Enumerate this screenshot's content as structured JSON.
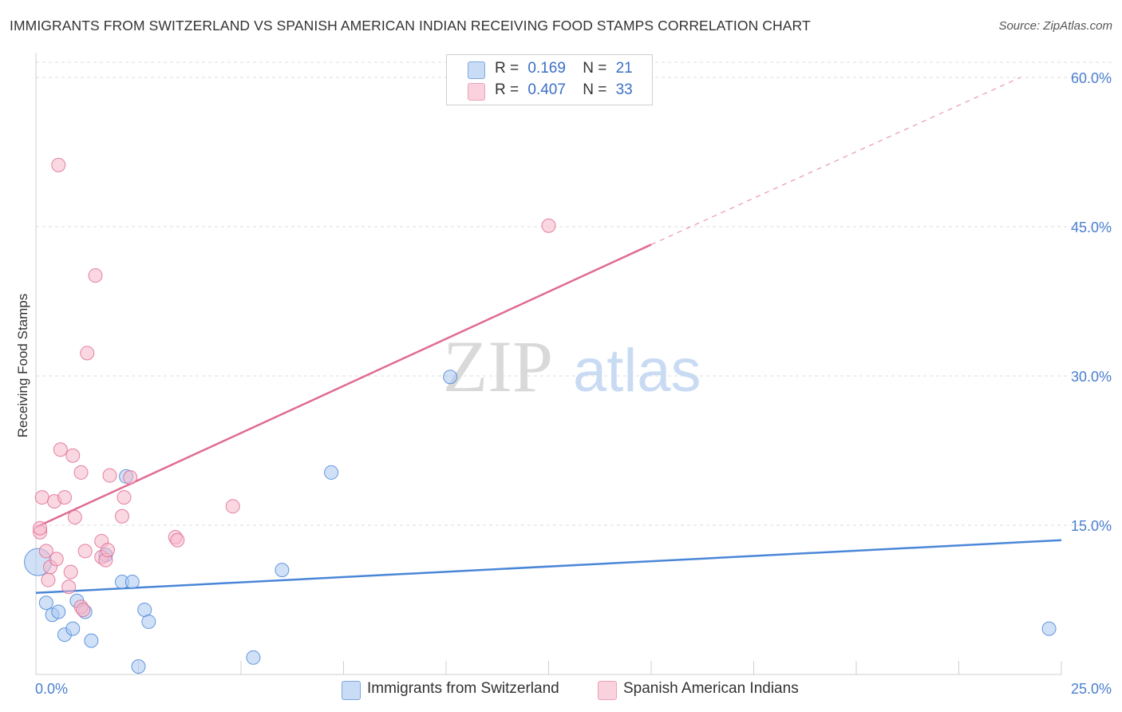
{
  "title": "IMMIGRANTS FROM SWITZERLAND VS SPANISH AMERICAN INDIAN RECEIVING FOOD STAMPS CORRELATION CHART",
  "source": "Source: ZipAtlas.com",
  "watermark": {
    "zip": "ZIP",
    "atlas": "atlas"
  },
  "legend": {
    "rows": [
      {
        "r_label": "R =",
        "r_value": "0.169",
        "n_label": "N =",
        "n_value": "21",
        "color": "#aac8f0"
      },
      {
        "r_label": "R =",
        "r_value": "0.407",
        "n_label": "N =",
        "n_value": "33",
        "color": "#f6b8cb"
      }
    ]
  },
  "bottom_legend": {
    "items": [
      {
        "label": "Immigrants from Switzerland",
        "color": "#aac8f0"
      },
      {
        "label": "Spanish American Indians",
        "color": "#f6b8cb"
      }
    ]
  },
  "chart_data": {
    "type": "scatter",
    "title": "IMMIGRANTS FROM SWITZERLAND VS SPANISH AMERICAN INDIAN RECEIVING FOOD STAMPS CORRELATION CHART",
    "xlabel": "",
    "ylabel": "Receiving Food Stamps",
    "xlim": [
      0,
      25
    ],
    "ylim": [
      0,
      60
    ],
    "x_tick_labels": [
      "0.0%",
      "25.0%"
    ],
    "y_ticks": [
      15,
      30,
      45,
      60
    ],
    "y_tick_labels": [
      "15.0%",
      "30.0%",
      "45.0%",
      "60.0%"
    ],
    "grid": "horizontal dashed",
    "legend_position": "top-center",
    "series": [
      {
        "name": "Immigrants from Switzerland",
        "color": "#4a86d8",
        "fill": "#aac8f0",
        "points": [
          [
            0.05,
            11.3
          ],
          [
            0.25,
            7.2
          ],
          [
            0.4,
            6.0
          ],
          [
            0.55,
            6.3
          ],
          [
            0.7,
            4.0
          ],
          [
            0.9,
            4.6
          ],
          [
            1.0,
            7.4
          ],
          [
            1.2,
            6.3
          ],
          [
            1.35,
            3.4
          ],
          [
            1.7,
            12.0
          ],
          [
            2.1,
            9.3
          ],
          [
            2.2,
            19.9
          ],
          [
            2.35,
            9.3
          ],
          [
            2.5,
            0.8
          ],
          [
            2.65,
            6.5
          ],
          [
            2.75,
            5.3
          ],
          [
            5.3,
            1.7
          ],
          [
            6.0,
            10.5
          ],
          [
            7.2,
            20.3
          ],
          [
            10.1,
            29.9
          ],
          [
            24.7,
            4.6
          ]
        ],
        "trend": {
          "x": [
            0,
            25
          ],
          "y": [
            8.2,
            13.5
          ]
        }
      },
      {
        "name": "Spanish American Indians",
        "color": "#e06b94",
        "fill": "#f6b8cb",
        "points": [
          [
            0.1,
            14.3
          ],
          [
            0.1,
            14.7
          ],
          [
            0.15,
            17.8
          ],
          [
            0.25,
            12.4
          ],
          [
            0.3,
            9.5
          ],
          [
            0.35,
            10.8
          ],
          [
            0.45,
            17.4
          ],
          [
            0.5,
            11.6
          ],
          [
            0.55,
            51.2
          ],
          [
            0.6,
            22.6
          ],
          [
            0.7,
            17.8
          ],
          [
            0.8,
            8.8
          ],
          [
            0.85,
            10.3
          ],
          [
            0.9,
            22.0
          ],
          [
            0.95,
            15.8
          ],
          [
            1.1,
            6.8
          ],
          [
            1.1,
            20.3
          ],
          [
            1.15,
            6.5
          ],
          [
            1.2,
            12.4
          ],
          [
            1.25,
            32.3
          ],
          [
            1.45,
            40.1
          ],
          [
            1.6,
            11.8
          ],
          [
            1.6,
            13.4
          ],
          [
            1.7,
            11.5
          ],
          [
            1.75,
            12.5
          ],
          [
            1.8,
            20.0
          ],
          [
            2.1,
            15.9
          ],
          [
            2.15,
            17.8
          ],
          [
            2.3,
            19.8
          ],
          [
            3.4,
            13.8
          ],
          [
            3.45,
            13.5
          ],
          [
            4.8,
            16.9
          ],
          [
            12.5,
            45.1
          ]
        ],
        "trend": {
          "x": [
            0,
            15
          ],
          "y": [
            14.8,
            43.2
          ],
          "dashed_to": {
            "x": 24,
            "y": 60
          }
        }
      }
    ]
  }
}
